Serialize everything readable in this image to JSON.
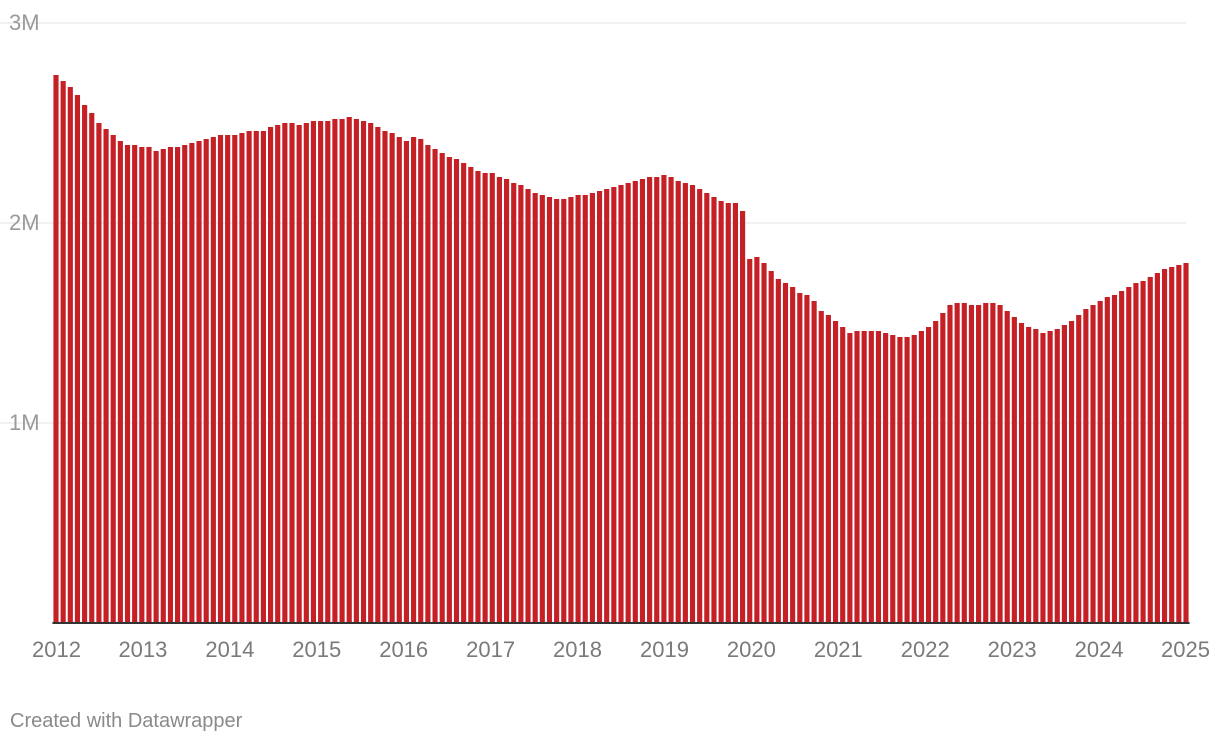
{
  "colors": {
    "bar": "#c42026"
  },
  "credit": "Created with Datawrapper",
  "chart_data": {
    "type": "bar",
    "title": "",
    "xlabel": "",
    "ylabel": "",
    "ylim": [
      0,
      3000000
    ],
    "y_ticks": [
      {
        "value": 1000000,
        "label": "1M"
      },
      {
        "value": 2000000,
        "label": "2M"
      },
      {
        "value": 3000000,
        "label": "3M"
      }
    ],
    "x_ticks": [
      "2012",
      "2013",
      "2014",
      "2015",
      "2016",
      "2017",
      "2018",
      "2019",
      "2020",
      "2021",
      "2022",
      "2023",
      "2024",
      "2025"
    ],
    "grid": true,
    "frequency": "monthly",
    "start": "2012-01",
    "end": "2025-01",
    "values": [
      2740000,
      2710000,
      2680000,
      2640000,
      2590000,
      2550000,
      2500000,
      2470000,
      2440000,
      2410000,
      2390000,
      2390000,
      2380000,
      2380000,
      2360000,
      2370000,
      2380000,
      2380000,
      2390000,
      2400000,
      2410000,
      2420000,
      2430000,
      2440000,
      2440000,
      2440000,
      2450000,
      2460000,
      2460000,
      2460000,
      2480000,
      2490000,
      2500000,
      2500000,
      2490000,
      2500000,
      2510000,
      2510000,
      2510000,
      2520000,
      2520000,
      2530000,
      2520000,
      2510000,
      2500000,
      2480000,
      2460000,
      2450000,
      2430000,
      2410000,
      2430000,
      2420000,
      2390000,
      2370000,
      2350000,
      2330000,
      2320000,
      2300000,
      2280000,
      2260000,
      2250000,
      2250000,
      2230000,
      2220000,
      2200000,
      2190000,
      2170000,
      2150000,
      2140000,
      2130000,
      2120000,
      2120000,
      2130000,
      2140000,
      2140000,
      2150000,
      2160000,
      2170000,
      2180000,
      2190000,
      2200000,
      2210000,
      2220000,
      2230000,
      2230000,
      2240000,
      2230000,
      2210000,
      2200000,
      2190000,
      2170000,
      2150000,
      2130000,
      2110000,
      2100000,
      2100000,
      2060000,
      1820000,
      1830000,
      1800000,
      1760000,
      1720000,
      1700000,
      1680000,
      1650000,
      1640000,
      1610000,
      1560000,
      1540000,
      1510000,
      1480000,
      1450000,
      1460000,
      1460000,
      1460000,
      1460000,
      1450000,
      1440000,
      1430000,
      1430000,
      1440000,
      1460000,
      1480000,
      1510000,
      1550000,
      1590000,
      1600000,
      1600000,
      1590000,
      1590000,
      1600000,
      1600000,
      1590000,
      1560000,
      1530000,
      1500000,
      1480000,
      1470000,
      1450000,
      1460000,
      1470000,
      1490000,
      1510000,
      1540000,
      1570000,
      1590000,
      1610000,
      1630000,
      1640000,
      1660000,
      1680000,
      1700000,
      1710000,
      1730000,
      1750000,
      1770000,
      1780000,
      1790000,
      1800000
    ]
  }
}
